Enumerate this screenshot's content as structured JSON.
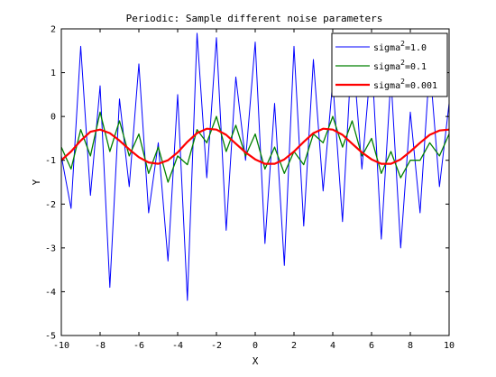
{
  "chart_data": {
    "type": "line",
    "title": "Periodic: Sample different noise parameters",
    "xlabel": "X",
    "ylabel": "Y",
    "xlim": [
      -10,
      10
    ],
    "ylim": [
      -5,
      2
    ],
    "xticks": [
      "-10",
      "-8",
      "-6",
      "-4",
      "-2",
      "0",
      "2",
      "4",
      "6",
      "8",
      "10"
    ],
    "yticks": [
      "-5",
      "-4",
      "-3",
      "-2",
      "-1",
      "0",
      "1",
      "2"
    ],
    "legend_location": "top-right",
    "grid": false,
    "series": [
      {
        "name_base": "sigma",
        "name_sup": "2",
        "name_value": "=1.0",
        "color": "#0000ff",
        "x": [
          -10,
          -9.5,
          -9,
          -8.5,
          -8,
          -7.5,
          -7,
          -6.5,
          -6,
          -5.5,
          -5,
          -4.5,
          -4,
          -3.5,
          -3,
          -2.5,
          -2,
          -1.5,
          -1,
          -0.5,
          0,
          0.5,
          1,
          1.5,
          2,
          2.5,
          3,
          3.5,
          4,
          4.5,
          5,
          5.5,
          6,
          6.5,
          7,
          7.5,
          8,
          8.5,
          9,
          9.5,
          10
        ],
        "y": [
          -0.9,
          -2.1,
          1.6,
          -1.8,
          0.7,
          -3.9,
          0.4,
          -1.6,
          1.2,
          -2.2,
          -0.6,
          -3.3,
          0.5,
          -4.2,
          1.9,
          -1.4,
          1.8,
          -2.6,
          0.9,
          -1.0,
          1.7,
          -2.9,
          0.3,
          -3.4,
          1.6,
          -2.5,
          1.3,
          -1.7,
          0.8,
          -2.4,
          1.7,
          -1.2,
          1.4,
          -2.8,
          0.9,
          -3.0,
          0.1,
          -2.2,
          1.2,
          -1.6,
          0.3
        ]
      },
      {
        "name_base": "sigma",
        "name_sup": "2",
        "name_value": "=0.1",
        "color": "#008000",
        "x": [
          -10,
          -9.5,
          -9,
          -8.5,
          -8,
          -7.5,
          -7,
          -6.5,
          -6,
          -5.5,
          -5,
          -4.5,
          -4,
          -3.5,
          -3,
          -2.5,
          -2,
          -1.5,
          -1,
          -0.5,
          0,
          0.5,
          1,
          1.5,
          2,
          2.5,
          3,
          3.5,
          4,
          4.5,
          5,
          5.5,
          6,
          6.5,
          7,
          7.5,
          8,
          8.5,
          9,
          9.5,
          10
        ],
        "y": [
          -0.7,
          -1.2,
          -0.3,
          -0.9,
          0.1,
          -0.8,
          -0.1,
          -0.9,
          -0.4,
          -1.3,
          -0.7,
          -1.5,
          -0.9,
          -1.1,
          -0.3,
          -0.6,
          0.0,
          -0.8,
          -0.2,
          -0.9,
          -0.4,
          -1.2,
          -0.7,
          -1.3,
          -0.8,
          -1.1,
          -0.4,
          -0.6,
          0.0,
          -0.7,
          -0.1,
          -0.9,
          -0.5,
          -1.3,
          -0.8,
          -1.4,
          -1.0,
          -1.0,
          -0.6,
          -0.9,
          -0.4
        ]
      },
      {
        "name_base": "sigma",
        "name_sup": "2",
        "name_value": "=0.001",
        "color": "#ff0000",
        "x": [
          -10,
          -9.5,
          -9,
          -8.5,
          -8,
          -7.5,
          -7,
          -6.5,
          -6,
          -5.5,
          -5,
          -4.5,
          -4,
          -3.5,
          -3,
          -2.5,
          -2,
          -1.5,
          -1,
          -0.5,
          0,
          0.5,
          1,
          1.5,
          2,
          2.5,
          3,
          3.5,
          4,
          4.5,
          5,
          5.5,
          6,
          6.5,
          7,
          7.5,
          8,
          8.5,
          9,
          9.5,
          10
        ],
        "y": [
          -1.0,
          -0.8,
          -0.55,
          -0.35,
          -0.3,
          -0.38,
          -0.55,
          -0.75,
          -0.93,
          -1.05,
          -1.08,
          -1.0,
          -0.82,
          -0.58,
          -0.38,
          -0.28,
          -0.3,
          -0.42,
          -0.62,
          -0.82,
          -0.98,
          -1.08,
          -1.08,
          -0.98,
          -0.8,
          -0.58,
          -0.38,
          -0.28,
          -0.3,
          -0.42,
          -0.62,
          -0.82,
          -0.98,
          -1.08,
          -1.08,
          -0.98,
          -0.8,
          -0.6,
          -0.42,
          -0.32,
          -0.3
        ]
      }
    ]
  }
}
